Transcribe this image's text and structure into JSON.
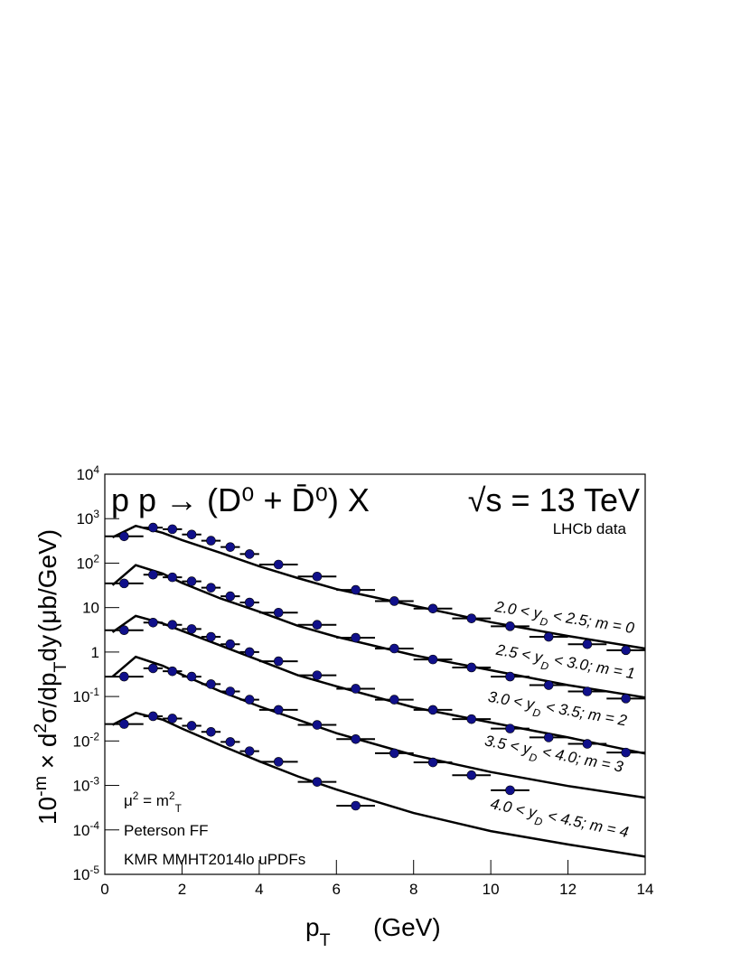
{
  "chart_data": {
    "type": "scatter",
    "title": "p p → (D⁰ + D̄⁰) X",
    "energy": "√s = 13 TeV",
    "data_label": "LHCb data",
    "xlabel": [
      "p",
      {
        "t": "T",
        "s": "sub"
      }
    ],
    "xunit": "(GeV)",
    "ylabel": [
      "10",
      {
        "t": "-m",
        "s": "sup"
      },
      " × d",
      {
        "t": "2",
        "s": "sup"
      },
      "σ/dp",
      {
        "t": "T",
        "s": "sub"
      },
      "dy"
    ],
    "yunit": "(μb/GeV)",
    "annotations": [
      [
        "μ",
        {
          "t": "2",
          "s": "sup"
        },
        " = m",
        {
          "t": "2",
          "s": "sup"
        },
        {
          "t": "T",
          "s": "sub"
        }
      ],
      [
        "Peterson FF"
      ],
      [
        "KMR MMHT2014lo uPDFs"
      ]
    ],
    "log_y": true,
    "xlim": [
      0,
      14
    ],
    "xticks": [
      0,
      2,
      4,
      6,
      8,
      10,
      12,
      14
    ],
    "ylim": [
      1e-05,
      10000
    ],
    "yticks": [
      {
        "value": 1e-05,
        "label": "10",
        "exp": "-5"
      },
      {
        "value": 0.0001,
        "label": "10",
        "exp": "-4"
      },
      {
        "value": 0.001,
        "label": "10",
        "exp": "-3"
      },
      {
        "value": 0.01,
        "label": "10",
        "exp": "-2"
      },
      {
        "value": 0.1,
        "label": "10",
        "exp": "-1"
      },
      1,
      10,
      {
        "value": 100,
        "label": "10",
        "exp": "2"
      },
      {
        "value": 1000,
        "label": "10",
        "exp": "3"
      },
      {
        "value": 10000,
        "label": "10",
        "exp": "4"
      }
    ],
    "bins": [
      0,
      1,
      1.5,
      2,
      2.5,
      3,
      3.5,
      4,
      5,
      6,
      7,
      8,
      9,
      10,
      11,
      12,
      13,
      14
    ],
    "x": [
      0.5,
      1.25,
      1.75,
      2.25,
      2.75,
      3.25,
      3.75,
      4.5,
      5.5,
      6.5,
      7.5,
      8.5,
      9.5,
      10.5,
      11.5,
      12.5,
      13.5
    ],
    "curve_x": [
      0.2,
      0.8,
      1.5,
      2,
      3,
      4,
      5,
      6,
      8,
      10,
      12,
      14
    ],
    "marker_color": "#10108a",
    "curve_color": "#000000",
    "series": [
      {
        "name": [
          "2.0 < y",
          {
            "t": "D",
            "s": "sub"
          },
          " < 2.5; m = 0"
        ],
        "values": [
          400,
          630,
          580,
          440,
          320,
          230,
          160,
          93,
          50,
          25,
          14,
          9.5,
          5.7,
          3.8,
          2.2,
          1.5,
          1.1
        ],
        "theory": [
          380,
          690,
          480,
          330,
          170,
          85,
          46,
          26,
          11,
          4.7,
          2.3,
          1.2
        ]
      },
      {
        "name": [
          "2.5 < y",
          {
            "t": "D",
            "s": "sub"
          },
          " < 3.0; m = 1"
        ],
        "values": [
          35,
          55,
          48,
          39,
          28,
          18,
          13,
          7.7,
          4.1,
          2.1,
          1.2,
          0.68,
          0.45,
          0.28,
          0.18,
          0.13,
          0.09
        ],
        "theory": [
          32,
          90,
          58,
          36,
          16,
          8.1,
          3.9,
          2.2,
          0.85,
          0.39,
          0.18,
          0.095
        ]
      },
      {
        "name": [
          "3.0 < y",
          {
            "t": "D",
            "s": "sub"
          },
          " < 3.5; m = 2"
        ],
        "values": [
          3.1,
          4.6,
          4.1,
          3.3,
          2.2,
          1.5,
          1.0,
          0.62,
          0.3,
          0.15,
          0.085,
          0.05,
          0.031,
          0.019,
          0.012,
          0.0086,
          0.0055
        ],
        "theory": [
          2.8,
          6.5,
          4.4,
          3.0,
          1.4,
          0.65,
          0.3,
          0.17,
          0.057,
          0.026,
          0.012,
          0.0052
        ]
      },
      {
        "name": [
          "3.5 < y",
          {
            "t": "D",
            "s": "sub"
          },
          " < 4.0; m = 3"
        ],
        "values": [
          0.28,
          0.43,
          0.37,
          0.28,
          0.19,
          0.13,
          0.085,
          0.05,
          0.023,
          0.011,
          0.0053,
          0.0033,
          0.0017,
          0.00078,
          null,
          null,
          null
        ],
        "theory": [
          0.28,
          0.78,
          0.49,
          0.31,
          0.13,
          0.06,
          0.03,
          0.015,
          0.0048,
          0.002,
          0.00097,
          0.00053
        ]
      },
      {
        "name": [
          "4.0 < y",
          {
            "t": "D",
            "s": "sub"
          },
          " < 4.5; m = 4"
        ],
        "values": [
          0.024,
          0.036,
          0.032,
          0.022,
          0.016,
          0.0095,
          0.0059,
          0.0034,
          0.0012,
          0.00035,
          null,
          null,
          null,
          null,
          null,
          null,
          null
        ],
        "theory": [
          0.023,
          0.043,
          0.03,
          0.019,
          0.008,
          0.0035,
          0.0016,
          0.00081,
          0.00024,
          9.4e-05,
          4.7e-05,
          2.5e-05
        ]
      }
    ]
  }
}
